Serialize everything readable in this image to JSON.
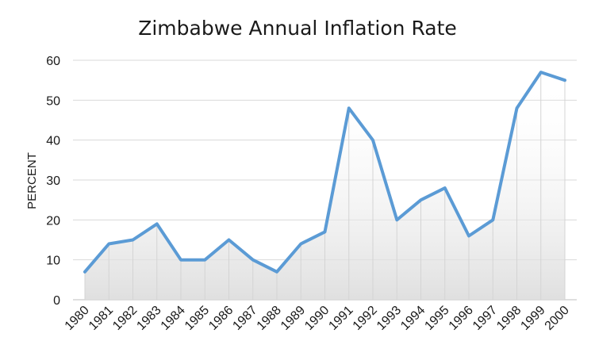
{
  "chart_data": {
    "type": "area",
    "title": "Zimbabwe Annual Inflation Rate",
    "xlabel": "",
    "ylabel": "PERCENT",
    "ylim": [
      0,
      60
    ],
    "yticks": [
      0,
      10,
      20,
      30,
      40,
      50,
      60
    ],
    "grid": true,
    "legend": "none",
    "categories": [
      "1980",
      "1981",
      "1982",
      "1983",
      "1984",
      "1985",
      "1986",
      "1987",
      "1988",
      "1989",
      "1990",
      "1991",
      "1992",
      "1993",
      "1994",
      "1995",
      "1996",
      "1997",
      "1998",
      "1999",
      "2000"
    ],
    "values": [
      7,
      14,
      15,
      19,
      10,
      10,
      15,
      10,
      7,
      14,
      17,
      48,
      40,
      20,
      25,
      28,
      16,
      20,
      48,
      57,
      55
    ],
    "line_color": "#5b9bd5"
  }
}
